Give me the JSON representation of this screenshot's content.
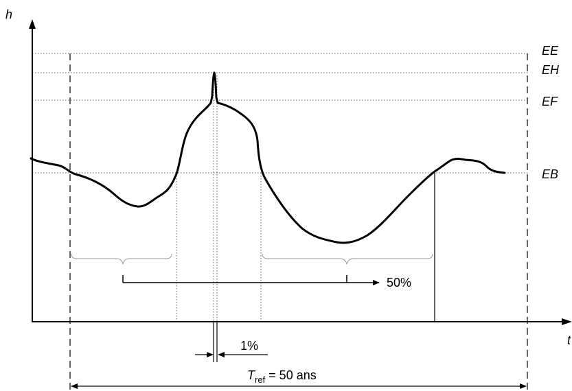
{
  "axes": {
    "y_label": "h",
    "x_label": "t"
  },
  "levels": {
    "ee": "EE",
    "eh": "EH",
    "ef": "EF",
    "eb": "EB"
  },
  "annotations": {
    "percent_50": "50%",
    "percent_1": "1%",
    "tref_symbol": "T",
    "tref_subscript": "ref",
    "tref_value": " = 50 ans"
  }
}
